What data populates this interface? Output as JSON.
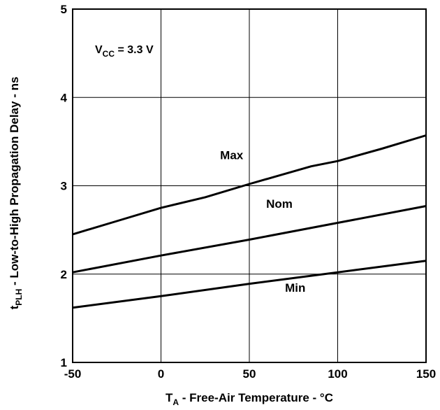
{
  "chart_data": {
    "type": "line",
    "xlabel_main": "T",
    "xlabel_sub": "A",
    "xlabel_rest": " - Free-Air Temperature - °C",
    "ylabel_main": "t",
    "ylabel_sub": "PLH",
    "ylabel_rest": " - Low-to-High Propagation Delay - ns",
    "annotation_main": "V",
    "annotation_sub": "CC",
    "annotation_rest": " = 3.3 V",
    "xlim": [
      -50,
      150
    ],
    "ylim": [
      1,
      5
    ],
    "x_ticks": [
      -50,
      0,
      50,
      100,
      150
    ],
    "y_ticks": [
      1,
      2,
      3,
      4,
      5
    ],
    "x_tick_labels": [
      "-50",
      "0",
      "50",
      "100",
      "150"
    ],
    "y_tick_labels": [
      "1",
      "2",
      "3",
      "4",
      "5"
    ],
    "grid": true,
    "series": [
      {
        "name": "Max",
        "x": [
          -50,
          -25,
          0,
          25,
          50,
          85,
          100,
          125,
          150
        ],
        "y": [
          2.45,
          2.6,
          2.75,
          2.87,
          3.02,
          3.22,
          3.28,
          3.42,
          3.57
        ]
      },
      {
        "name": "Nom",
        "x": [
          -50,
          0,
          50,
          100,
          150
        ],
        "y": [
          2.02,
          2.21,
          2.39,
          2.58,
          2.77
        ]
      },
      {
        "name": "Min",
        "x": [
          -50,
          0,
          50,
          100,
          150
        ],
        "y": [
          1.62,
          1.75,
          1.89,
          2.02,
          2.15
        ]
      }
    ],
    "series_label_positions": [
      {
        "name": "Max",
        "x": 40,
        "y": 3.3
      },
      {
        "name": "Nom",
        "x": 67,
        "y": 2.75
      },
      {
        "name": "Min",
        "x": 76,
        "y": 1.8
      }
    ]
  }
}
